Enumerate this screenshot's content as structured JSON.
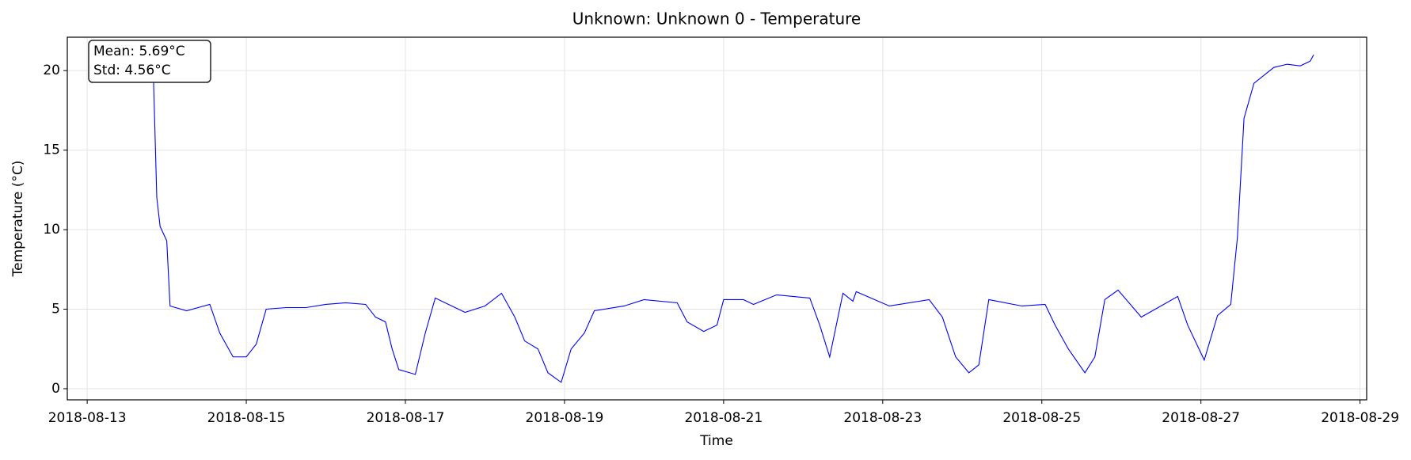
{
  "chart_data": {
    "type": "line",
    "title": "Unknown: Unknown 0 - Temperature",
    "x_label": "Time",
    "y_label": "Temperature (°C)",
    "annotations": [
      "Mean: 5.69°C",
      "Std: 4.56°C"
    ],
    "grid": true,
    "xlim": [
      "2018-08-12T18:00",
      "2018-08-29T02:00"
    ],
    "xticks": [
      "2018-08-13",
      "2018-08-15",
      "2018-08-17",
      "2018-08-19",
      "2018-08-21",
      "2018-08-23",
      "2018-08-25",
      "2018-08-27",
      "2018-08-29"
    ],
    "ylim": [
      -0.7,
      22.1
    ],
    "yticks": [
      0,
      5,
      10,
      15,
      20
    ],
    "x": [
      "2018-08-13T20:00",
      "2018-08-13T21:00",
      "2018-08-13T22:00",
      "2018-08-14T00:00",
      "2018-08-14T01:00",
      "2018-08-14T06:00",
      "2018-08-14T13:00",
      "2018-08-14T16:00",
      "2018-08-14T20:00",
      "2018-08-15T00:00",
      "2018-08-15T03:00",
      "2018-08-15T06:00",
      "2018-08-15T12:00",
      "2018-08-15T18:00",
      "2018-08-16T00:00",
      "2018-08-16T06:00",
      "2018-08-16T12:00",
      "2018-08-16T15:00",
      "2018-08-16T18:00",
      "2018-08-16T20:00",
      "2018-08-16T22:00",
      "2018-08-17T03:00",
      "2018-08-17T06:00",
      "2018-08-17T09:00",
      "2018-08-17T18:00",
      "2018-08-18T00:00",
      "2018-08-18T05:00",
      "2018-08-18T09:00",
      "2018-08-18T12:00",
      "2018-08-18T16:00",
      "2018-08-18T19:00",
      "2018-08-18T23:00",
      "2018-08-19T02:00",
      "2018-08-19T06:00",
      "2018-08-19T09:00",
      "2018-08-19T18:00",
      "2018-08-20T00:00",
      "2018-08-20T10:00",
      "2018-08-20T13:00",
      "2018-08-20T18:00",
      "2018-08-20T22:00",
      "2018-08-21T00:00",
      "2018-08-21T06:00",
      "2018-08-21T09:00",
      "2018-08-21T16:00",
      "2018-08-22T02:00",
      "2018-08-22T05:00",
      "2018-08-22T08:00",
      "2018-08-22T10:00",
      "2018-08-22T12:00",
      "2018-08-22T15:00",
      "2018-08-22T16:00",
      "2018-08-23T02:00",
      "2018-08-23T14:00",
      "2018-08-23T18:00",
      "2018-08-23T22:00",
      "2018-08-24T02:00",
      "2018-08-24T05:00",
      "2018-08-24T08:00",
      "2018-08-24T18:00",
      "2018-08-25T01:00",
      "2018-08-25T04:00",
      "2018-08-25T08:00",
      "2018-08-25T13:00",
      "2018-08-25T16:00",
      "2018-08-25T19:00",
      "2018-08-25T23:00",
      "2018-08-26T06:00",
      "2018-08-26T17:00",
      "2018-08-26T20:00",
      "2018-08-27T01:00",
      "2018-08-27T05:00",
      "2018-08-27T09:00",
      "2018-08-27T11:00",
      "2018-08-27T13:00",
      "2018-08-27T16:00",
      "2018-08-27T22:00",
      "2018-08-28T02:00",
      "2018-08-28T06:00",
      "2018-08-28T09:00",
      "2018-08-28T10:00"
    ],
    "series": [
      {
        "name": "Temperature",
        "color": "#0000ff",
        "values": [
          19.5,
          12,
          10.2,
          9.3,
          5.2,
          4.9,
          5.3,
          3.5,
          2.0,
          2.0,
          2.8,
          5.0,
          5.1,
          5.1,
          5.3,
          5.4,
          5.3,
          4.5,
          4.2,
          2.5,
          1.2,
          0.9,
          3.5,
          5.7,
          4.8,
          5.2,
          6.0,
          4.5,
          3.0,
          2.5,
          1.0,
          0.4,
          2.5,
          3.5,
          4.9,
          5.2,
          5.6,
          5.4,
          4.2,
          3.6,
          4.0,
          5.6,
          5.6,
          5.3,
          5.9,
          5.7,
          4.0,
          2.0,
          4.0,
          6.0,
          5.5,
          6.1,
          5.2,
          5.6,
          4.5,
          2.0,
          1.0,
          1.5,
          5.6,
          5.2,
          5.3,
          4.0,
          2.5,
          1.0,
          2.0,
          5.6,
          6.2,
          4.5,
          5.8,
          4.0,
          1.8,
          4.6,
          5.3,
          9.5,
          17.0,
          19.2,
          20.2,
          20.4,
          20.3,
          20.6,
          21.0
        ]
      }
    ]
  }
}
